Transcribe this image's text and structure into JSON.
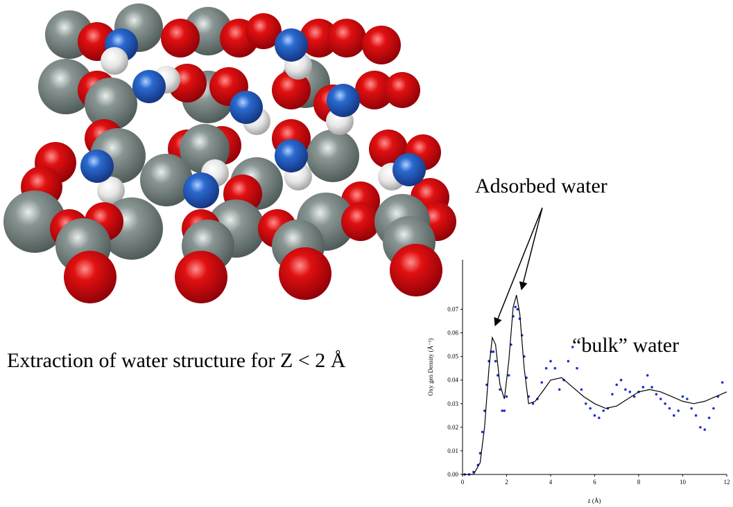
{
  "caption": "Extraction of water structure for Z < 2 Å",
  "chart_data": {
    "type": "scatter",
    "x_label": "z (Å)",
    "y_label": "Oxy gen Density (Å⁻³)",
    "annotations": [
      "Adsorbed water",
      "“bulk” water"
    ],
    "xlim": [
      0,
      12
    ],
    "xticks": [
      0,
      2,
      4,
      6,
      8,
      10,
      12
    ],
    "ylim": [
      0,
      0.091
    ],
    "yticks": [
      {
        "value": 0,
        "label": "0.00"
      },
      {
        "value": 0.01,
        "label": "0.01"
      },
      {
        "value": 0.02,
        "label": "0.02"
      },
      {
        "value": 0.03,
        "label": "0.03"
      },
      {
        "value": 0.04,
        "label": "0.04"
      },
      {
        "value": 0.05,
        "label": "0.05"
      },
      {
        "value": 0.06,
        "label": "0.06"
      },
      {
        "value": 0.07,
        "label": "0.07"
      }
    ],
    "series": [
      {
        "type": "scatter",
        "color": "#1f2fd0",
        "x": [
          0.1,
          0.3,
          0.5,
          0.7,
          0.8,
          0.9,
          1.0,
          1.1,
          1.2,
          1.3,
          1.4,
          1.5,
          1.6,
          1.7,
          1.8,
          1.9,
          2.0,
          2.1,
          2.2,
          2.3,
          2.4,
          2.5,
          2.6,
          2.7,
          2.8,
          2.9,
          3.0,
          3.2,
          3.4,
          3.6,
          3.8,
          4.0,
          4.2,
          4.4,
          4.6,
          4.8,
          5.0,
          5.2,
          5.4,
          5.6,
          5.8,
          6.0,
          6.2,
          6.4,
          6.6,
          6.8,
          7.0,
          7.2,
          7.4,
          7.6,
          7.8,
          8.0,
          8.2,
          8.4,
          8.6,
          8.8,
          9.0,
          9.2,
          9.4,
          9.6,
          9.8,
          10.0,
          10.2,
          10.4,
          10.6,
          10.8,
          11.0,
          11.2,
          11.4,
          11.6,
          11.8
        ],
        "values": [
          0,
          0,
          0.001,
          0.004,
          0.009,
          0.018,
          0.027,
          0.038,
          0.048,
          0.052,
          0.052,
          0.048,
          0.042,
          0.036,
          0.027,
          0.027,
          0.033,
          0.042,
          0.055,
          0.067,
          0.071,
          0.07,
          0.066,
          0.059,
          0.05,
          0.041,
          0.033,
          0.03,
          0.032,
          0.039,
          0.045,
          0.048,
          0.045,
          0.036,
          0.04,
          0.048,
          0.054,
          0.045,
          0.036,
          0.03,
          0.028,
          0.025,
          0.024,
          0.027,
          0.028,
          0.034,
          0.038,
          0.04,
          0.036,
          0.035,
          0.033,
          0.035,
          0.037,
          0.042,
          0.037,
          0.034,
          0.032,
          0.03,
          0.028,
          0.025,
          0.027,
          0.033,
          0.032,
          0.028,
          0.025,
          0.02,
          0.019,
          0.024,
          0.028,
          0.033,
          0.039
        ]
      },
      {
        "type": "line",
        "color": "#000000",
        "x": [
          0,
          0.5,
          0.8,
          1.0,
          1.2,
          1.35,
          1.5,
          1.7,
          1.9,
          2.1,
          2.3,
          2.45,
          2.6,
          2.8,
          3.0,
          3.3,
          3.7,
          4.0,
          4.5,
          5.0,
          5.5,
          6.0,
          6.5,
          7.0,
          7.5,
          8.0,
          8.5,
          9.0,
          9.5,
          10.0,
          10.5,
          11.0,
          11.5,
          12.0
        ],
        "values": [
          0,
          0,
          0.005,
          0.02,
          0.045,
          0.058,
          0.055,
          0.038,
          0.032,
          0.048,
          0.071,
          0.076,
          0.068,
          0.045,
          0.03,
          0.031,
          0.036,
          0.04,
          0.041,
          0.037,
          0.033,
          0.03,
          0.028,
          0.029,
          0.032,
          0.035,
          0.036,
          0.035,
          0.033,
          0.031,
          0.03,
          0.031,
          0.033,
          0.035
        ]
      }
    ]
  }
}
